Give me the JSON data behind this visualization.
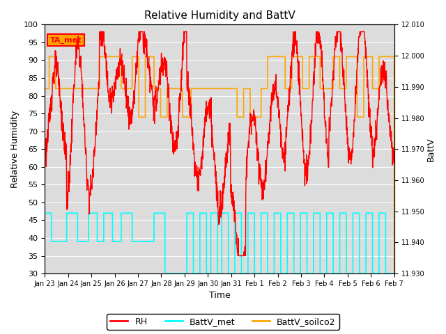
{
  "title": "Relative Humidity and BattV",
  "ylabel_left": "Relative Humidity",
  "ylabel_right": "BattV",
  "xlabel": "Time",
  "ylim_left": [
    30,
    100
  ],
  "ylim_right": [
    11.93,
    12.01
  ],
  "yticks_left": [
    30,
    35,
    40,
    45,
    50,
    55,
    60,
    65,
    70,
    75,
    80,
    85,
    90,
    95,
    100
  ],
  "yticks_right_labels": [
    "11.930",
    "11.940",
    "11.950",
    "11.960",
    "11.970",
    "11.980",
    "11.990",
    "12.000",
    "12.010"
  ],
  "yticks_right_vals": [
    11.93,
    11.94,
    11.95,
    11.96,
    11.97,
    11.98,
    11.99,
    12.0,
    12.01
  ],
  "xtick_labels": [
    "Jan 23",
    "Jan 24",
    "Jan 25",
    "Jan 26",
    "Jan 27",
    "Jan 28",
    "Jan 29",
    "Jan 30",
    "Jan 31",
    "Feb 1",
    "Feb 2",
    "Feb 3",
    "Feb 4",
    "Feb 5",
    "Feb 6",
    "Feb 7"
  ],
  "color_rh": "#FF0000",
  "color_battv_met": "#00FFFF",
  "color_battv_soilco2": "#FFA500",
  "bg_color": "#DCDCDC",
  "annotation_text": "TA_met",
  "annotation_bg": "#FFA500",
  "annotation_text_color": "#FF0000",
  "n_days": 16
}
